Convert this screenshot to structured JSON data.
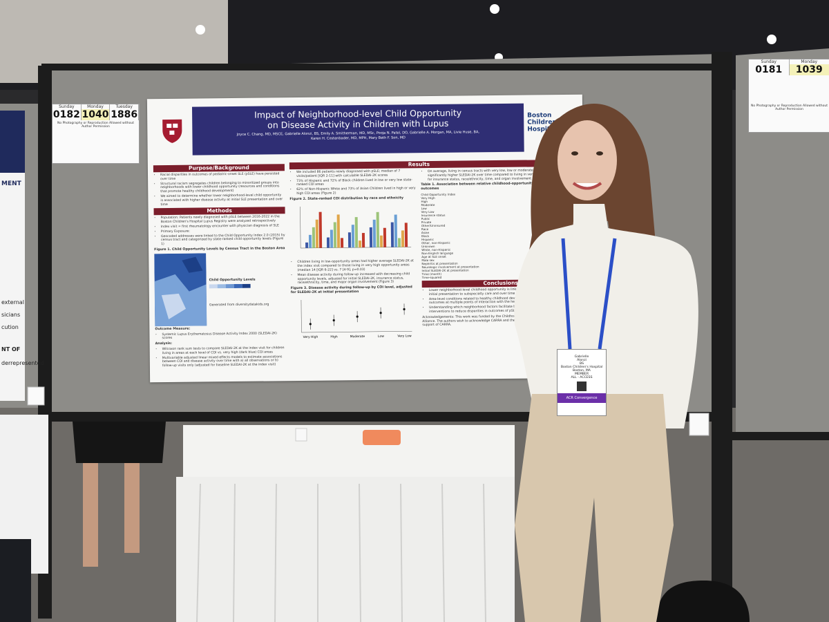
{
  "poster": {
    "title_lines": [
      "Impact of Neighborhood-level Child Opportunity",
      "on Disease Activity in Children with Lupus"
    ],
    "authors": [
      "Joyce C. Chang, MD, MSCE, Gabrielle Alonzi, BS, Emily A. Smitherman, MD, MSc, Pooja N. Patel, DO, Gabrielle A. Morgan, MA, Livie Huse, BA,",
      "Karen H. Costenbader, MD, MPH, Mary Beth F. Son, MD"
    ],
    "logo": "Boston Children's Hospital",
    "sections": {
      "background": {
        "heading": "Purpose/Background",
        "items": [
          "Racial disparities in outcomes of pediatric-onset SLE (pSLE) have persisted over time",
          "Structural racism segregates children belonging to minoritized groups into neighborhoods with lower childhood opportunity (resources and conditions that promote healthy childhood development)",
          "We aimed to determine whether lower neighborhood-level child opportunity is associated with higher disease activity at initial SLE presentation and over time"
        ]
      },
      "methods": {
        "heading": "Methods",
        "items": [
          "Population: Patients newly diagnosed with pSLE between 2016-2022 in the Boston Children's Hospital Lupus Registry were analyzed retrospectively",
          "Index visit = first rheumatology encounter with physician diagnosis of SLE",
          "Primary Exposure:",
          "Geocoded addresses were linked to the Child Opportunity Index 2.0 (2015) by census tract and categorized by state-ranked child opportunity levels (Figure 1)"
        ]
      },
      "figure1": "Figure 1. Child Opportunity Levels by Census Tract in the Boston Area",
      "figure1_legend": "Child Opportunity Levels",
      "figure1_source": "Generated from diversitydatakids.org",
      "outcome": {
        "heading": "Outcome Measure:",
        "items": [
          "Systemic Lupus Erythematosus Disease Activity Index 2000 (SLEDAI-2K) scores"
        ]
      },
      "analysis": {
        "heading": "Analysis:",
        "items": [
          "Wilcoxon rank sum tests to compare SLEDAI-2K at the index visit for children living in areas at each level of COI vs. very high (dark blue) COI areas",
          "Multivariable adjusted linear mixed effects models to estimate associations between COI and disease activity over time with a) all observations or b) follow-up visits only (adjusted for baseline SLEDAI-2K at the index visit)"
        ]
      },
      "results": {
        "heading": "Results",
        "items": [
          "We included 86 patients newly diagnosed with pSLE; median of 7 visits/patient [IQR 2-11] with calculable SLEDAI-2K scores",
          "73% of Hispanic and 72% of Black children lived in low or very low state-ranked COI areas",
          "62% of Non-Hispanic White and 73% of Asian Children lived in high or very high COI areas (Figure 2)"
        ]
      },
      "figure2": "Figure 2. State-ranked COI distribution by race and ethnicity",
      "results2": [
        "Children living in low-opportunity areas had higher average SLEDAI-2K at the index visit compared to those living in very high opportunity areas (median 14 [IQR 6-22] vs. 7 [4-9], p=0.03)",
        "Mean disease activity during follow-up increased with decreasing child opportunity levels, adjusted for initial SLEDAI-2K, insurance status, race/ethnicity, time, and major organ involvement (Figure 3)"
      ],
      "figure3": "Figure 3. Disease activity during follow-up by COI level, adjusted for SLEDAI-2K at initial presentation",
      "figure3_x": [
        "Very High",
        "High",
        "Moderate",
        "Low",
        "Very Low"
      ],
      "results3": [
        "On average, living in census tracts with very low, low or moderate COI was associated with significantly higher SLEDAI-2K over time compared to living in very high COI areas, adjusted for insurance status, race/ethnicity, time, and organ involvement"
      ],
      "table1": "Table 1. Association between relative childhood-opportunity within state and pSLE outcomes",
      "table_rows": [
        "Child Opportunity Index",
        "Very High",
        "High",
        "Moderate",
        "Low",
        "Very Low",
        "Insurance status",
        "Public",
        "Private",
        "Other/Uninsured",
        "Race",
        "Asian",
        "Black",
        "Hispanic",
        "Other, non-Hispanic",
        "Unknown",
        "White, non-Hispanic",
        "Non-English language",
        "Age at SLE onset",
        "Male sex",
        "Nephritis at presentation",
        "Neurologic involvement at presentation",
        "Initial SLEDAI-2K at presentation",
        "Time (month)",
        "Time-squared"
      ],
      "conclusions": {
        "heading": "Conclusions",
        "items": [
          "Lower neighborhood-level childhood opportunity is linked to higher disease activity both at initial presentation to subspecialty care and over time",
          "Area-level conditions related to healthy childhood development may influence health outcomes at multiple points of interaction with the health care system",
          "Understanding which neighborhood factors facilitate better outcomes may inform tailored interventions to reduce disparities in outcomes of pSLE"
        ]
      },
      "acknowledgments": "Acknowledgements: This work was funded by the Childhood Arthritis and Rheumatology Research Alliance. The authors wish to acknowledge CARRA and the ongoing Arthritis Foundation financial support of CARRA."
    }
  },
  "signs": [
    {
      "days": [
        {
          "day": "Sunday",
          "number": "0182"
        },
        {
          "day": "Monday",
          "number": "1040"
        },
        {
          "day": "Tuesday",
          "number": "1886"
        }
      ],
      "notice": "No Photography or Reproduction Allowed without Author Permission"
    },
    {
      "days": [
        {
          "day": "Sunday",
          "number": "0181"
        },
        {
          "day": "Monday",
          "number": "1039"
        }
      ],
      "notice": "No Photography or Reproduction Allowed without Author Permission"
    }
  ],
  "left_poster": {
    "heading": "MENT",
    "lines": [
      "external",
      "sicians",
      "cution",
      "NT OF",
      "derrepresented"
    ]
  },
  "badge": {
    "first": "Gabrielle",
    "last": "Alonzi",
    "degree": "BS",
    "org": "Boston Children's Hospital",
    "city": "Boston, MA",
    "type": "MEMBER",
    "access": "ALL - ACCESS",
    "event": "ACR Convergence"
  }
}
